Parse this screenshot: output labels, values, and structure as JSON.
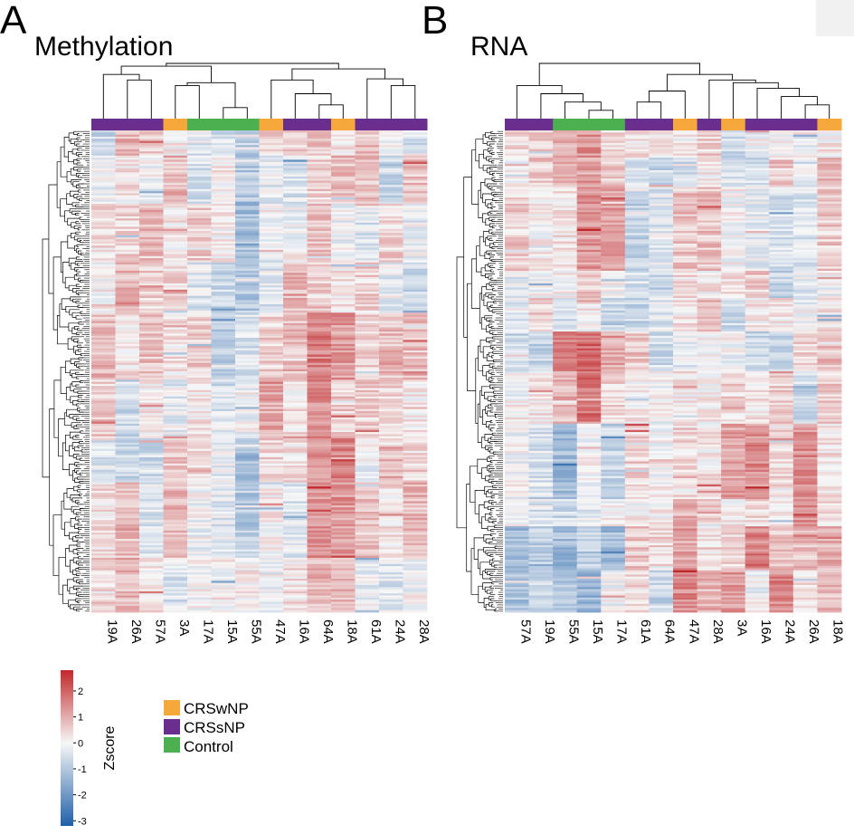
{
  "colors": {
    "CRSwNP": "#f5a93a",
    "CRSsNP": "#6a2f8e",
    "Control": "#4caf50",
    "scale_low": "#1f5fa8",
    "scale_mid": "#f7f7f7",
    "scale_high": "#c0282b",
    "tree": "#000000"
  },
  "chart_data": [
    {
      "type": "heatmap",
      "panel": "A",
      "title": "Methylation",
      "columns": [
        "19A",
        "26A",
        "57A",
        "3A",
        "17A",
        "15A",
        "55A",
        "47A",
        "16A",
        "64A",
        "18A",
        "61A",
        "24A",
        "28A"
      ],
      "groups": [
        "CRSsNP",
        "CRSsNP",
        "CRSsNP",
        "CRSwNP",
        "Control",
        "Control",
        "Control",
        "CRSwNP",
        "CRSsNP",
        "CRSsNP",
        "CRSwNP",
        "CRSsNP",
        "CRSsNP",
        "CRSsNP"
      ],
      "value_range": [
        -3.2,
        2.8
      ],
      "seed": 7,
      "rows": 230,
      "col_bias": [
        0.1,
        0.15,
        0.2,
        0.05,
        -0.1,
        -0.4,
        -0.45,
        0.3,
        0.15,
        0.9,
        0.7,
        0.3,
        0.05,
        0.05
      ],
      "col_tree": [
        [
          3,
          4,
          0.6
        ],
        [
          1,
          2,
          0.7
        ],
        [
          0,
          15,
          0.8
        ],
        [
          5,
          6,
          0.2
        ],
        [
          14,
          17,
          0.65
        ],
        [
          16,
          18,
          0.95
        ],
        [
          9,
          10,
          0.25
        ],
        [
          8,
          20,
          0.45
        ],
        [
          7,
          21,
          0.7
        ],
        [
          12,
          13,
          0.6
        ],
        [
          11,
          23,
          0.72
        ],
        [
          22,
          24,
          0.9
        ],
        [
          19,
          25,
          1.0
        ]
      ]
    },
    {
      "type": "heatmap",
      "panel": "B",
      "title": "RNA",
      "columns": [
        "57A",
        "19A",
        "55A",
        "15A",
        "17A",
        "61A",
        "64A",
        "47A",
        "28A",
        "3A",
        "16A",
        "24A",
        "26A",
        "18A"
      ],
      "groups": [
        "CRSsNP",
        "CRSsNP",
        "Control",
        "Control",
        "Control",
        "CRSsNP",
        "CRSsNP",
        "CRSwNP",
        "CRSsNP",
        "CRSwNP",
        "CRSsNP",
        "CRSsNP",
        "CRSsNP",
        "CRSwNP"
      ],
      "value_range": [
        -3.2,
        2.8
      ],
      "seed": 19,
      "rows": 230,
      "col_tree": [
        [
          3,
          4,
          0.15
        ],
        [
          2,
          14,
          0.3
        ],
        [
          1,
          15,
          0.45
        ],
        [
          0,
          16,
          0.6
        ],
        [
          5,
          6,
          0.3
        ],
        [
          7,
          18,
          0.5
        ],
        [
          12,
          13,
          0.25
        ],
        [
          11,
          20,
          0.4
        ],
        [
          10,
          21,
          0.55
        ],
        [
          9,
          22,
          0.65
        ],
        [
          8,
          23,
          0.7
        ],
        [
          19,
          24,
          0.8
        ],
        [
          17,
          25,
          1.0
        ]
      ]
    }
  ],
  "colorbar": {
    "title": "Zscore",
    "ticks": [
      "2",
      "1",
      "0",
      "-1",
      "-2",
      "-3"
    ],
    "tick_values": [
      2,
      1,
      0,
      -1,
      -2,
      -3
    ],
    "range": [
      -3.2,
      2.8
    ]
  },
  "legend": {
    "items": [
      {
        "label": "CRSwNP",
        "group": "CRSwNP"
      },
      {
        "label": "CRSsNP",
        "group": "CRSsNP"
      },
      {
        "label": "Control",
        "group": "Control"
      }
    ]
  }
}
